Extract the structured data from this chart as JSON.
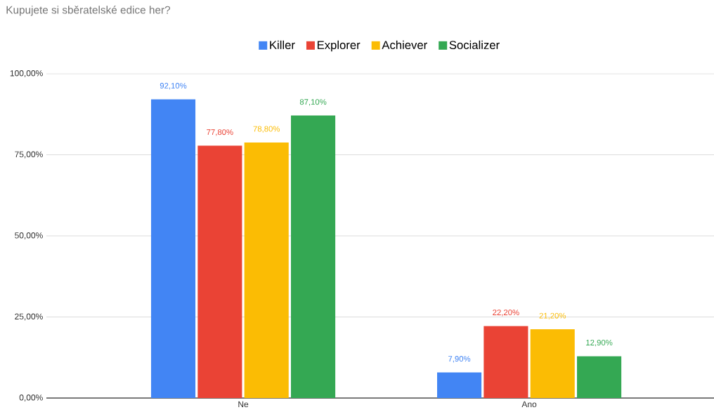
{
  "chart_data": {
    "type": "bar",
    "title": "Kupujete si sběratelské edice her?",
    "categories": [
      "Ne",
      "Ano"
    ],
    "series": [
      {
        "name": "Killer",
        "color": "#4285f4",
        "values": [
          92.1,
          7.9
        ],
        "value_labels": [
          "92,10%",
          "7,90%"
        ]
      },
      {
        "name": "Explorer",
        "color": "#ea4335",
        "values": [
          77.8,
          22.2
        ],
        "value_labels": [
          "77,80%",
          "22,20%"
        ]
      },
      {
        "name": "Achiever",
        "color": "#fbbc04",
        "values": [
          78.8,
          21.2
        ],
        "value_labels": [
          "78,80%",
          "21,20%"
        ]
      },
      {
        "name": "Socializer",
        "color": "#34a853",
        "values": [
          87.1,
          12.9
        ],
        "value_labels": [
          "87,10%",
          "12,90%"
        ]
      }
    ],
    "ylim": [
      0,
      100
    ],
    "yticks": [
      {
        "value": 0,
        "label": "0,00%"
      },
      {
        "value": 25,
        "label": "25,00%"
      },
      {
        "value": 50,
        "label": "50,00%"
      },
      {
        "value": 75,
        "label": "75,00%"
      },
      {
        "value": 100,
        "label": "100,00%"
      }
    ],
    "grid": "y",
    "legend": "top"
  }
}
